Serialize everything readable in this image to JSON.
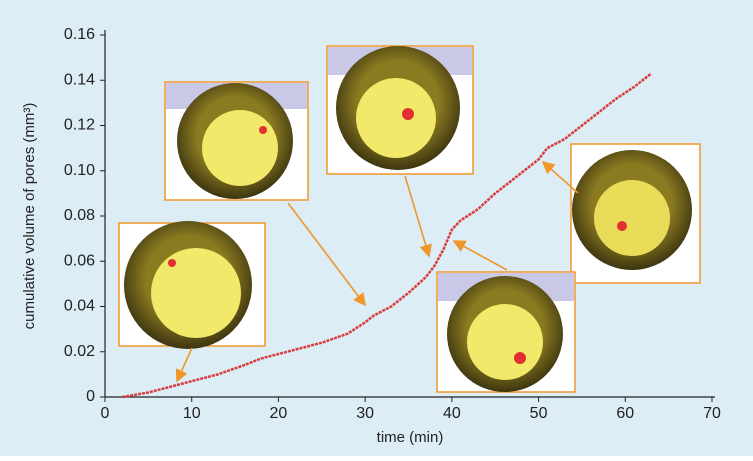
{
  "chart_data": {
    "type": "line",
    "x_label": "time (min)",
    "y_label": "cumulative volume of pores (mm³)",
    "x": [
      2,
      5,
      8,
      10,
      13,
      16,
      18,
      20,
      22,
      25,
      28,
      30,
      31,
      33,
      35,
      37,
      38,
      39,
      40,
      41,
      43,
      45,
      47,
      49,
      50,
      51,
      53,
      55,
      57,
      59,
      61,
      63
    ],
    "series": [
      {
        "color": "#d93c3c",
        "values": [
          0,
          0.002,
          0.005,
          0.007,
          0.01,
          0.014,
          0.017,
          0.019,
          0.021,
          0.024,
          0.028,
          0.033,
          0.036,
          0.04,
          0.046,
          0.053,
          0.058,
          0.065,
          0.074,
          0.078,
          0.083,
          0.09,
          0.096,
          0.102,
          0.105,
          0.11,
          0.114,
          0.12,
          0.126,
          0.132,
          0.137,
          0.143
        ]
      }
    ],
    "xlim": [
      0,
      70
    ],
    "xticks": [
      0,
      10,
      20,
      30,
      40,
      50,
      60,
      70
    ],
    "ylim": [
      0,
      0.16
    ],
    "yticks": [
      0,
      0.02,
      0.04,
      0.06,
      0.08,
      {
        "value": 0.1,
        "label": "0.10"
      },
      0.12,
      0.14,
      0.16
    ]
  }
}
